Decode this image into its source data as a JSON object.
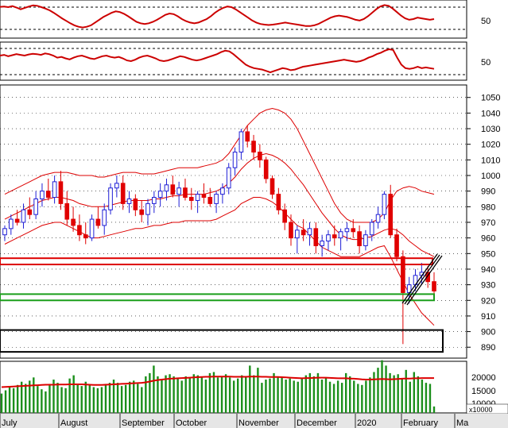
{
  "chart_data": {
    "type": "candlestick",
    "colors": {
      "up": "#1f1fd6",
      "down": "#e00000",
      "indicator": "#cc0000",
      "volume": "#1b8f1b",
      "volume_ma": "#dd0000",
      "bollinger": "#dd0000",
      "resistance_box": "#dd0000",
      "support_box": "#1a9e1a",
      "target_box": "#000000",
      "wedge": "#000000",
      "grid": "#000000",
      "background": "#ffffff",
      "axis_bg": "#e6e6e6"
    },
    "x_axis": {
      "month_labels": [
        "July",
        "August",
        "September",
        "October",
        "November",
        "December",
        "2020",
        "February",
        "Ma"
      ]
    },
    "oscillator_top": {
      "y_tick_labels": [
        "50"
      ],
      "levels": [
        80,
        20
      ],
      "ylim": [
        0,
        100
      ],
      "values": [
        85,
        86,
        84,
        87,
        83,
        78,
        82,
        86,
        89,
        88,
        84,
        80,
        75,
        68,
        60,
        52,
        45,
        38,
        32,
        28,
        26,
        28,
        32,
        40,
        48,
        56,
        62,
        68,
        72,
        70,
        65,
        58,
        50,
        42,
        38,
        36,
        38,
        42,
        48,
        55,
        62,
        66,
        64,
        58,
        50,
        44,
        40,
        38,
        40,
        45,
        50,
        58,
        68,
        76,
        82,
        86,
        84,
        78,
        70,
        62,
        54,
        46,
        40,
        36,
        34,
        33,
        34,
        36,
        38,
        40,
        38,
        36,
        34,
        32,
        30,
        30,
        32,
        36,
        42,
        48,
        54,
        58,
        60,
        58,
        56,
        52,
        48,
        46,
        50,
        58,
        68,
        78,
        86,
        90,
        88,
        80,
        70,
        60,
        52,
        48,
        50,
        54,
        52,
        50,
        48,
        50
      ]
    },
    "oscillator_mid": {
      "y_tick_labels": [
        "50"
      ],
      "levels": [
        80,
        20
      ],
      "ylim": [
        0,
        100
      ],
      "values": [
        66,
        68,
        64,
        67,
        70,
        68,
        66,
        69,
        71,
        70,
        68,
        72,
        70,
        66,
        60,
        62,
        58,
        55,
        60,
        64,
        66,
        62,
        58,
        56,
        60,
        64,
        66,
        62,
        60,
        62,
        58,
        52,
        50,
        54,
        60,
        64,
        66,
        62,
        58,
        52,
        50,
        52,
        56,
        60,
        64,
        62,
        58,
        54,
        52,
        54,
        58,
        62,
        66,
        70,
        76,
        80,
        78,
        70,
        60,
        50,
        40,
        34,
        30,
        28,
        26,
        22,
        18,
        22,
        26,
        30,
        28,
        24,
        26,
        30,
        34,
        36,
        38,
        40,
        42,
        44,
        46,
        48,
        50,
        52,
        54,
        52,
        50,
        48,
        50,
        54,
        60,
        64,
        70,
        74,
        80,
        84,
        82,
        60,
        40,
        30,
        28,
        30,
        34,
        30,
        32,
        30,
        28
      ]
    },
    "price": {
      "y_tick_labels": [
        "1050",
        "1040",
        "1030",
        "1020",
        "1010",
        "1000",
        "990",
        "980",
        "970",
        "960",
        "950",
        "940",
        "930",
        "920",
        "910",
        "900",
        "890"
      ],
      "ylim": [
        883,
        1058
      ],
      "ohlc": [
        [
          962,
          968,
          958,
          966
        ],
        [
          966,
          975,
          962,
          972
        ],
        [
          972,
          978,
          968,
          970
        ],
        [
          970,
          982,
          966,
          978
        ],
        [
          978,
          986,
          972,
          975
        ],
        [
          975,
          990,
          972,
          985
        ],
        [
          985,
          995,
          980,
          990
        ],
        [
          990,
          998,
          984,
          986
        ],
        [
          986,
          1000,
          982,
          996
        ],
        [
          996,
          1003,
          978,
          982
        ],
        [
          982,
          990,
          968,
          972
        ],
        [
          972,
          980,
          964,
          968
        ],
        [
          968,
          975,
          958,
          962
        ],
        [
          962,
          970,
          956,
          960
        ],
        [
          960,
          975,
          958,
          972
        ],
        [
          972,
          980,
          966,
          968
        ],
        [
          968,
          982,
          962,
          978
        ],
        [
          978,
          995,
          975,
          992
        ],
        [
          992,
          1000,
          986,
          995
        ],
        [
          995,
          1000,
          978,
          982
        ],
        [
          982,
          990,
          976,
          985
        ],
        [
          985,
          988,
          974,
          978
        ],
        [
          978,
          984,
          970,
          975
        ],
        [
          975,
          985,
          968,
          982
        ],
        [
          982,
          990,
          976,
          986
        ],
        [
          986,
          995,
          980,
          990
        ],
        [
          990,
          998,
          984,
          994
        ],
        [
          994,
          1000,
          986,
          988
        ],
        [
          988,
          996,
          980,
          992
        ],
        [
          992,
          998,
          984,
          986
        ],
        [
          986,
          992,
          978,
          984
        ],
        [
          984,
          990,
          976,
          988
        ],
        [
          988,
          995,
          982,
          986
        ],
        [
          986,
          992,
          980,
          982
        ],
        [
          982,
          990,
          976,
          988
        ],
        [
          988,
          995,
          982,
          992
        ],
        [
          992,
          1008,
          988,
          1005
        ],
        [
          1005,
          1018,
          1000,
          1015
        ],
        [
          1015,
          1030,
          1010,
          1028
        ],
        [
          1028,
          1032,
          1018,
          1022
        ],
        [
          1022,
          1026,
          1010,
          1015
        ],
        [
          1015,
          1020,
          1005,
          1010
        ],
        [
          1010,
          1012,
          995,
          998
        ],
        [
          998,
          1000,
          985,
          988
        ],
        [
          988,
          992,
          975,
          978
        ],
        [
          978,
          982,
          965,
          970
        ],
        [
          970,
          975,
          955,
          960
        ],
        [
          960,
          968,
          950,
          965
        ],
        [
          965,
          972,
          958,
          962
        ],
        [
          962,
          970,
          955,
          966
        ],
        [
          966,
          970,
          950,
          955
        ],
        [
          955,
          962,
          948,
          958
        ],
        [
          958,
          965,
          952,
          962
        ],
        [
          962,
          968,
          955,
          960
        ],
        [
          960,
          966,
          952,
          964
        ],
        [
          964,
          970,
          958,
          966
        ],
        [
          966,
          972,
          960,
          964
        ],
        [
          964,
          968,
          950,
          955
        ],
        [
          955,
          965,
          952,
          962
        ],
        [
          962,
          972,
          958,
          970
        ],
        [
          970,
          980,
          966,
          975
        ],
        [
          975,
          990,
          972,
          988
        ],
        [
          988,
          994,
          960,
          962
        ],
        [
          962,
          966,
          945,
          948
        ],
        [
          948,
          952,
          892,
          925
        ],
        [
          925,
          935,
          918,
          930
        ],
        [
          930,
          940,
          926,
          936
        ],
        [
          936,
          944,
          930,
          938
        ],
        [
          938,
          942,
          928,
          932
        ],
        [
          932,
          938,
          922,
          926
        ]
      ],
      "bollinger": {
        "upper": [
          988,
          990,
          992,
          994,
          996,
          998,
          1000,
          1001,
          1002,
          1002,
          1002,
          1001,
          1000,
          1000,
          1000,
          999,
          999,
          1000,
          1001,
          1002,
          1002,
          1002,
          1001,
          1001,
          1001,
          1002,
          1003,
          1004,
          1005,
          1005,
          1005,
          1005,
          1006,
          1007,
          1008,
          1010,
          1014,
          1020,
          1026,
          1032,
          1036,
          1040,
          1042,
          1043,
          1042,
          1040,
          1036,
          1030,
          1022,
          1014,
          1006,
          998,
          990,
          982,
          976,
          972,
          970,
          970,
          970,
          970,
          972,
          976,
          984,
          990,
          992,
          993,
          992,
          990,
          989,
          988
        ],
        "middle": [
          972,
          974,
          976,
          978,
          980,
          982,
          984,
          985,
          986,
          986,
          985,
          984,
          982,
          981,
          980,
          980,
          980,
          981,
          982,
          983,
          984,
          984,
          984,
          984,
          985,
          985,
          986,
          987,
          987,
          988,
          988,
          988,
          988,
          989,
          990,
          992,
          995,
          999,
          1004,
          1008,
          1011,
          1013,
          1014,
          1013,
          1011,
          1008,
          1004,
          999,
          994,
          988,
          982,
          976,
          971,
          966,
          962,
          960,
          959,
          959,
          960,
          961,
          963,
          965,
          966,
          965,
          962,
          958,
          955,
          952,
          950,
          948
        ],
        "lower": [
          956,
          958,
          960,
          962,
          964,
          966,
          968,
          969,
          970,
          970,
          968,
          966,
          964,
          962,
          960,
          960,
          961,
          962,
          963,
          964,
          965,
          966,
          966,
          967,
          968,
          968,
          969,
          970,
          970,
          971,
          971,
          971,
          971,
          971,
          972,
          974,
          976,
          978,
          982,
          984,
          986,
          986,
          985,
          983,
          980,
          976,
          972,
          968,
          966,
          962,
          958,
          954,
          952,
          950,
          948,
          948,
          948,
          948,
          950,
          952,
          954,
          955,
          948,
          940,
          932,
          924,
          918,
          912,
          908,
          904
        ]
      }
    },
    "zones": {
      "resistance": [
        943,
        947
      ],
      "support": [
        920,
        924
      ],
      "target": [
        887,
        901
      ]
    },
    "volume": {
      "y_tick_labels": [
        "20000",
        "15000",
        "10000"
      ],
      "unit_label": "x10000",
      "ylim": [
        0,
        24000
      ],
      "values": [
        9000,
        10500,
        12000,
        11500,
        13000,
        14500,
        13500,
        15000,
        16500,
        12500,
        11000,
        10000,
        13500,
        15500,
        14000,
        12000,
        11500,
        16000,
        17500,
        13000,
        12500,
        14500,
        13000,
        12000,
        11500,
        12000,
        13500,
        14000,
        15500,
        14000,
        12500,
        13000,
        14500,
        15000,
        13500,
        12000,
        17000,
        18500,
        22000,
        17000,
        15500,
        17500,
        18000,
        17000,
        16000,
        15000,
        17000,
        16500,
        18000,
        17500,
        16500,
        15500,
        18500,
        19000,
        16500,
        17000,
        18000,
        16500,
        15000,
        16000,
        17500,
        17000,
        22000,
        17500,
        21000,
        14000,
        15500,
        16000,
        18500,
        17000,
        16500,
        15500,
        16000,
        15000,
        14500,
        16000,
        17500,
        18500,
        17000,
        18500,
        15500,
        16500,
        14500,
        13500,
        15000,
        14000,
        18500,
        17000,
        15000,
        13500,
        13000,
        15000,
        16500,
        19000,
        21000,
        24500,
        22000,
        18500,
        17500,
        18000,
        16000,
        20000,
        14500,
        19000,
        17000,
        15500,
        14000,
        13500,
        3000
      ],
      "ma": [
        12000,
        12100,
        12200,
        12300,
        12400,
        12500,
        12600,
        12700,
        12800,
        12900,
        13000,
        13100,
        13100,
        13100,
        13200,
        13200,
        13200,
        13300,
        13300,
        13300,
        13300,
        13200,
        13100,
        13000,
        13000,
        13000,
        13100,
        13200,
        13300,
        13400,
        13500,
        13600,
        13700,
        13800,
        13900,
        14000,
        14200,
        14600,
        15000,
        15300,
        15500,
        15700,
        15900,
        16000,
        16100,
        16200,
        16300,
        16400,
        16500,
        16600,
        16700,
        16800,
        16800,
        16900,
        16900,
        16900,
        16900,
        16900,
        16800,
        16800,
        16800,
        16800,
        16900,
        16900,
        16900,
        16800,
        16800,
        16700,
        16700,
        16700,
        16600,
        16500,
        16400,
        16300,
        16200,
        16100,
        16200,
        16200,
        16300,
        16400,
        16400,
        16400,
        16300,
        16200,
        16100,
        16100,
        16100,
        16000,
        15900,
        15800,
        15600,
        15500,
        15500,
        15600,
        15700,
        15800,
        15700,
        15600,
        15700,
        15800,
        15900,
        16000,
        16000,
        16100,
        16100,
        16200,
        16200,
        16200,
        16200
      ]
    }
  }
}
